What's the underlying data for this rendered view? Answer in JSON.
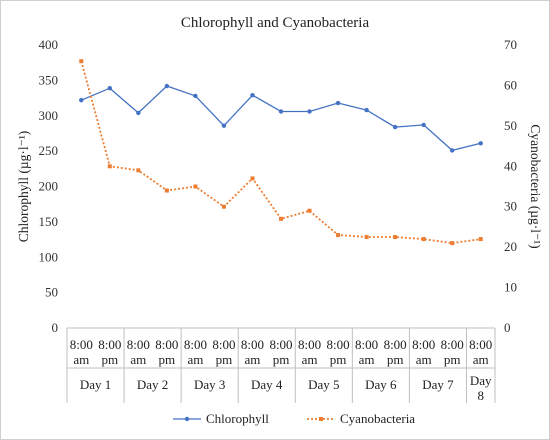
{
  "chart_data": {
    "type": "line",
    "title": "Chlorophyll and Cyanobacteria",
    "ylabel": "Chlorophyll (µg·l⁻¹)",
    "y2label": "Cyanobacteria (µg·l⁻¹)",
    "ylim": [
      0,
      400
    ],
    "y2lim": [
      0,
      70
    ],
    "yticks": [
      "0",
      "50",
      "100",
      "150",
      "200",
      "250",
      "300",
      "350",
      "400"
    ],
    "y2ticks": [
      "0",
      "10",
      "20",
      "30",
      "40",
      "50",
      "60",
      "70"
    ],
    "times": [
      "8:00 am",
      "8:00 pm",
      "8:00 am",
      "8:00 pm",
      "8:00 am",
      "8:00 pm",
      "8:00 am",
      "8:00 pm",
      "8:00 am",
      "8:00 pm",
      "8:00 am",
      "8:00 pm",
      "8:00 am",
      "8:00 pm",
      "8:00 am"
    ],
    "days": [
      "Day 1",
      "Day 2",
      "Day 3",
      "Day 4",
      "Day 5",
      "Day 6",
      "Day 7",
      "Day 8"
    ],
    "grid": false,
    "legend_position": "bottom",
    "series": [
      {
        "name": "Chlorophyll",
        "axis": "left",
        "color": "#4472C4",
        "style": "solid",
        "values": [
          322,
          339,
          304,
          342,
          328,
          286,
          329,
          306,
          306,
          318,
          308,
          284,
          287,
          251,
          261
        ]
      },
      {
        "name": "Cyanobacteria",
        "axis": "right",
        "color": "#ED7D31",
        "style": "dotted",
        "values": [
          66,
          40,
          39,
          34,
          35,
          30,
          37,
          27,
          29,
          23,
          22.5,
          22.5,
          22,
          21,
          22
        ]
      }
    ]
  }
}
